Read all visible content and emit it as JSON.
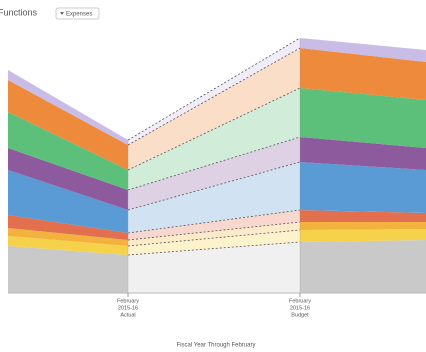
{
  "chart_data": {
    "type": "stacked-area",
    "title": "Functions",
    "filter": "Expenses",
    "x_label": "Fiscal Year Through February",
    "categories": [
      null,
      [
        "February",
        "2015-16",
        "Actual"
      ],
      [
        "February",
        "2015-16",
        "Budget"
      ],
      null
    ],
    "ylim": [
      0,
      255
    ],
    "series": [
      {
        "color": "#c9c9c9",
        "values": [
          47,
          38,
          51,
          53
        ]
      },
      {
        "color": "#f5d24a",
        "values": [
          10,
          9,
          12,
          11
        ]
      },
      {
        "color": "#f3b23e",
        "values": [
          8,
          6,
          8,
          7
        ]
      },
      {
        "color": "#e2704f",
        "values": [
          13,
          7,
          12,
          9
        ]
      },
      {
        "color": "#5b9bd5",
        "values": [
          45,
          23,
          48,
          43
        ]
      },
      {
        "color": "#8e5a9e",
        "values": [
          22,
          20,
          25,
          22
        ]
      },
      {
        "color": "#5cbf7a",
        "values": [
          36,
          20,
          49,
          48
        ]
      },
      {
        "color": "#ee8a3c",
        "values": [
          32,
          25,
          40,
          38
        ]
      },
      {
        "color": "#c9bde8",
        "values": [
          10,
          5,
          10,
          12
        ]
      }
    ]
  }
}
